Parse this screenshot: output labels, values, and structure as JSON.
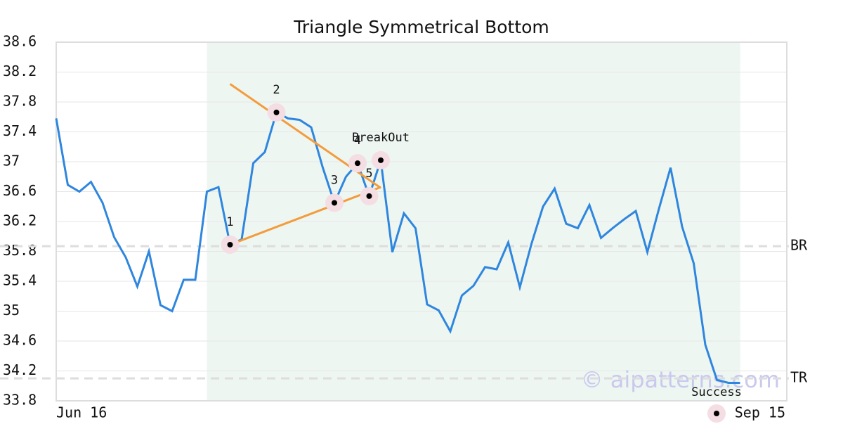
{
  "chart_data": {
    "type": "line",
    "title": "Triangle Symmetrical Bottom",
    "categories": [
      "Jun 16",
      null,
      null,
      null,
      null,
      null,
      null,
      null,
      null,
      null,
      null,
      null,
      null,
      null,
      null,
      null,
      null,
      null,
      null,
      null,
      null,
      null,
      null,
      null,
      null,
      null,
      null,
      null,
      null,
      null,
      null,
      null,
      null,
      null,
      null,
      null,
      null,
      null,
      null,
      null,
      null,
      null,
      null,
      null,
      null,
      null,
      null,
      null,
      null,
      null,
      null,
      null,
      null,
      null,
      null,
      null,
      null,
      null,
      null,
      "Sep 15"
    ],
    "values": [
      37.58,
      36.69,
      36.6,
      36.73,
      36.45,
      35.99,
      35.72,
      35.33,
      35.8,
      35.08,
      35.0,
      35.42,
      35.42,
      36.6,
      36.66,
      35.89,
      35.96,
      36.98,
      37.13,
      37.66,
      37.58,
      37.56,
      37.46,
      36.92,
      36.45,
      36.8,
      36.98,
      36.54,
      37.02,
      35.79,
      36.31,
      36.11,
      35.09,
      35.01,
      34.73,
      35.21,
      35.34,
      35.59,
      35.56,
      35.92,
      35.32,
      35.9,
      36.4,
      36.64,
      36.17,
      36.11,
      36.42,
      35.98,
      36.11,
      36.23,
      36.34,
      35.79,
      36.37,
      36.92,
      36.13,
      35.64,
      34.55,
      34.08,
      34.04,
      34.04
    ],
    "color": "#2e86de",
    "ylim": [
      33.8,
      38.6
    ],
    "yticks": [
      33.8,
      34.2,
      34.6,
      35.0,
      35.4,
      35.8,
      36.2,
      36.6,
      37.0,
      37.4,
      37.8,
      38.2,
      38.6
    ],
    "grid": true,
    "highlight_range": [
      13,
      59
    ],
    "highlight_color": "#eef6f2",
    "levels": [
      {
        "label": "BR",
        "value": 35.87
      },
      {
        "label": "TR",
        "value": 34.1
      }
    ],
    "trendlines": [
      {
        "x": [
          15,
          28
        ],
        "values": [
          38.04,
          36.65
        ]
      },
      {
        "x": [
          15,
          28
        ],
        "values": [
          35.89,
          36.66
        ]
      }
    ],
    "trend_color": "#f39c3c",
    "points": [
      {
        "label": "1",
        "index": 15,
        "value": 35.89
      },
      {
        "label": "2",
        "index": 19,
        "value": 37.66
      },
      {
        "label": "3",
        "index": 24,
        "value": 36.45
      },
      {
        "label": "4",
        "index": 26,
        "value": 36.98
      },
      {
        "label": "5",
        "index": 27,
        "value": 36.54
      },
      {
        "label": "BreakOut",
        "index": 28,
        "value": 37.02
      }
    ],
    "legend": {
      "label": "Success"
    },
    "watermark": "© aipatterns.com"
  }
}
